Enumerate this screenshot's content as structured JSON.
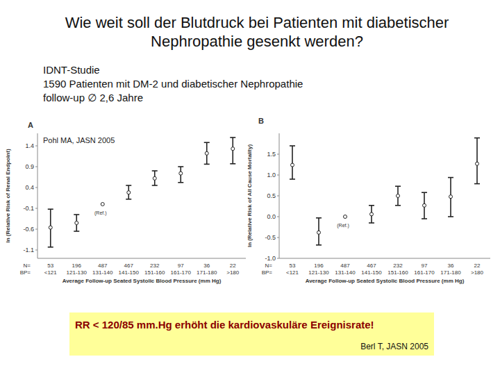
{
  "slide": {
    "title": "Wie weit soll der Blutdruck bei Patienten mit diabetischer Nephropathie gesenkt werden?",
    "study": [
      "IDNT-Studie",
      "1590 Patienten mit DM-2 und diabetischer Nephropathie",
      "follow-up ∅ 2,6 Jahre"
    ],
    "conclusion": "RR < 120/85 mm.Hg erhöht die kardiovaskuläre Ereignisrate!",
    "conclusion_source": "Berl T, JASN 2005"
  },
  "chart_data": [
    {
      "type": "scatter",
      "panel": "A",
      "source": "Pohl MA, JASN 2005",
      "y_label": "ln (Relative Risk of Renal Endpoint)",
      "x_label": "Average Follow-up Seated Systolic Blood Pressure (mm Hg)",
      "categories": [
        "<121",
        "121-130",
        "131-140",
        "141-150",
        "151-160",
        "161-170",
        "171-180",
        ">180"
      ],
      "values": [
        -0.56,
        -0.45,
        0,
        0.28,
        0.62,
        0.74,
        1.22,
        1.33
      ],
      "lower": [
        -1.03,
        -0.65,
        null,
        0.12,
        0.45,
        0.52,
        0.96,
        0.97
      ],
      "upper": [
        -0.12,
        -0.25,
        null,
        0.45,
        0.8,
        0.9,
        1.48,
        1.6
      ],
      "n_label": "N=",
      "n": [
        53,
        196,
        487,
        467,
        232,
        97,
        36,
        22
      ],
      "bp_label": "BP=",
      "annotations": [
        {
          "text": "(Ref.)",
          "category": "131-140"
        }
      ],
      "ylim": [
        -1.3,
        1.7
      ],
      "yticks": [
        -1.1,
        -0.6,
        -0.1,
        0.4,
        0.9,
        1.4
      ],
      "color": "#222222",
      "marker": "circle",
      "grid": false
    },
    {
      "type": "scatter",
      "panel": "B",
      "y_label": "ln (Relative Risk of All Cause Mortality)",
      "x_label": "Average Follow-up Seated Systolic Blood Pressure (mm Hg)",
      "categories": [
        "<121",
        "121-130",
        "131-140",
        "141-150",
        "151-160",
        "161-170",
        "171-180",
        ">180"
      ],
      "values": [
        1.24,
        -0.38,
        0,
        0.06,
        0.5,
        0.27,
        0.48,
        1.27
      ],
      "lower": [
        0.9,
        -0.68,
        null,
        -0.15,
        0.27,
        -0.05,
        0,
        0.79
      ],
      "upper": [
        1.7,
        -0.03,
        null,
        0.27,
        0.73,
        0.58,
        0.94,
        1.89
      ],
      "n_label": "N=",
      "n": [
        53,
        196,
        487,
        467,
        232,
        97,
        36,
        22
      ],
      "bp_label": "BP=",
      "annotations": [
        {
          "text": "(Ref.)",
          "category": "131-140"
        }
      ],
      "ylim": [
        -1.0,
        2.0
      ],
      "yticks": [
        {
          "value": -1,
          "label": "-1.0"
        },
        -0.5,
        {
          "value": 0,
          "label": "0.0"
        },
        0.5,
        {
          "value": 1,
          "label": "1.0"
        },
        1.5
      ],
      "color": "#222222",
      "marker": "circle",
      "grid": false
    }
  ]
}
